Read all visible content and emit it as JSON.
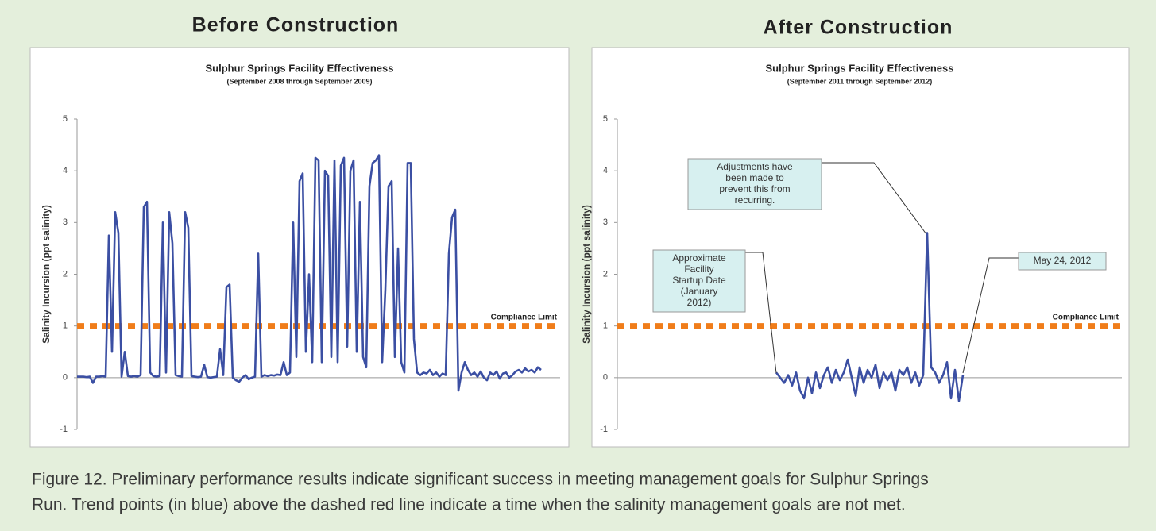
{
  "chart_data": [
    {
      "type": "line",
      "panel_title": "Before Construction",
      "title": "Sulphur Springs Facility Effectiveness",
      "subtitle": "(September 2008 through September 2009)",
      "y_label": "Salinity Incursion (ppt salinity)",
      "ylim": [
        -1,
        5
      ],
      "yticks": [
        -1,
        0,
        1,
        2,
        3,
        4,
        5
      ],
      "grid": false,
      "compliance_limit": {
        "value": 1,
        "label": "Compliance Limit",
        "color": "#f07d1a"
      },
      "series": [
        {
          "color": "#3b4fa3",
          "values": [
            0.02,
            0.02,
            0.02,
            0.01,
            0.02,
            -0.1,
            0.02,
            0.02,
            0.03,
            0.02,
            2.75,
            0.5,
            3.2,
            2.8,
            0.02,
            0.5,
            0.03,
            0.02,
            0.03,
            0.02,
            0.05,
            3.3,
            3.4,
            0.1,
            0.03,
            0.02,
            0.03,
            3.0,
            0.1,
            3.2,
            2.6,
            0.05,
            0.03,
            0.02,
            3.2,
            2.9,
            0.03,
            0.02,
            0.01,
            0.02,
            0.25,
            0.01,
            0.0,
            0.01,
            0.02,
            0.55,
            0.05,
            1.75,
            1.8,
            0.0,
            -0.05,
            -0.08,
            0.0,
            0.05,
            -0.03,
            0.0,
            0.02,
            2.4,
            0.02,
            0.05,
            0.03,
            0.05,
            0.04,
            0.06,
            0.05,
            0.3,
            0.05,
            0.1,
            3.0,
            0.4,
            3.8,
            3.95,
            0.5,
            2.0,
            0.3,
            4.25,
            4.2,
            0.3,
            4.0,
            3.9,
            0.4,
            4.2,
            0.3,
            4.1,
            4.25,
            0.6,
            4.0,
            4.2,
            0.5,
            3.4,
            0.4,
            0.2,
            3.7,
            4.15,
            4.2,
            4.3,
            0.3,
            1.7,
            3.7,
            3.8,
            0.4,
            2.5,
            0.3,
            0.1,
            4.15,
            4.15,
            0.75,
            0.1,
            0.05,
            0.1,
            0.08,
            0.15,
            0.05,
            0.1,
            0.02,
            0.08,
            0.05,
            2.4,
            3.1,
            3.25,
            -0.25,
            0.1,
            0.3,
            0.15,
            0.05,
            0.1,
            0.02,
            0.12,
            0.0,
            -0.05,
            0.1,
            0.05,
            0.12,
            -0.02,
            0.08,
            0.1,
            0.0,
            0.05,
            0.12,
            0.15,
            0.1,
            0.18,
            0.12,
            0.15,
            0.1,
            0.2,
            0.15
          ]
        }
      ]
    },
    {
      "type": "line",
      "panel_title": "After Construction",
      "title": "Sulphur Springs Facility Effectiveness",
      "subtitle": "(September 2011 through September 2012)",
      "y_label": "Salinity Incursion (ppt salinity)",
      "ylim": [
        -1,
        5
      ],
      "yticks": [
        -1,
        0,
        1,
        2,
        3,
        4,
        5
      ],
      "grid": false,
      "compliance_limit": {
        "value": 1,
        "label": "Compliance Limit",
        "color": "#f07d1a"
      },
      "annotations": [
        {
          "lines": [
            "Adjustments have",
            "been made to",
            "prevent this from",
            "recurring."
          ]
        },
        {
          "lines": [
            "Approximate",
            "Facility",
            "Startup Date",
            "(January",
            "2012)"
          ]
        },
        {
          "lines": [
            "May 24, 2012"
          ]
        }
      ],
      "series": [
        {
          "color": "#3b4fa3",
          "values": [
            null,
            null,
            null,
            null,
            null,
            null,
            null,
            null,
            null,
            null,
            null,
            null,
            null,
            null,
            null,
            null,
            null,
            null,
            null,
            null,
            null,
            null,
            null,
            null,
            null,
            null,
            null,
            null,
            null,
            null,
            null,
            null,
            null,
            null,
            null,
            null,
            null,
            null,
            null,
            null,
            0.1,
            0.0,
            -0.1,
            0.05,
            -0.15,
            0.1,
            -0.25,
            -0.4,
            0.0,
            -0.3,
            0.1,
            -0.2,
            0.05,
            0.2,
            -0.1,
            0.15,
            -0.05,
            0.1,
            0.35,
            0.0,
            -0.35,
            0.2,
            -0.1,
            0.15,
            0.0,
            0.25,
            -0.2,
            0.1,
            -0.05,
            0.1,
            -0.25,
            0.15,
            0.05,
            0.2,
            -0.1,
            0.1,
            -0.15,
            0.05,
            2.8,
            0.2,
            0.1,
            -0.1,
            0.05,
            0.3,
            -0.4,
            0.15,
            -0.45,
            0.05
          ]
        }
      ]
    }
  ],
  "caption": [
    "Figure 12.  Preliminary performance results indicate significant success in meeting management goals for Sulphur Springs",
    "Run. Trend points (in blue) above the dashed red line indicate a time when the salinity management goals are not met."
  ]
}
